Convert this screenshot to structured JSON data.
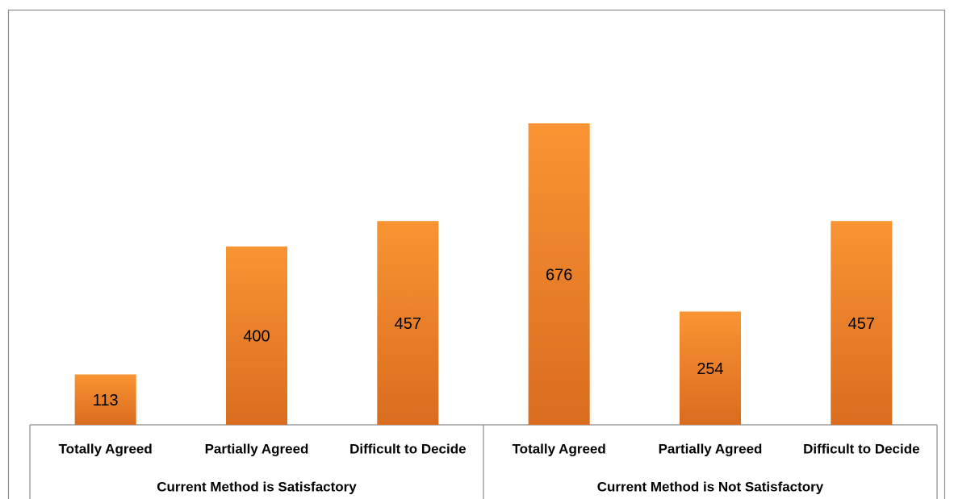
{
  "chart_data": {
    "type": "bar",
    "groups": [
      {
        "label": "Current Method is Satisfactory",
        "categories": [
          "Totally Agreed",
          "Partially Agreed",
          "Difficult to Decide"
        ],
        "values": [
          113,
          400,
          457
        ]
      },
      {
        "label": "Current Method is Not Satisfactory",
        "categories": [
          "Totally Agreed",
          "Partially Agreed",
          "Difficult to Decide"
        ],
        "values": [
          676,
          254,
          457
        ]
      }
    ],
    "color": "#f7902f",
    "ylim": [
      0,
      800
    ]
  }
}
